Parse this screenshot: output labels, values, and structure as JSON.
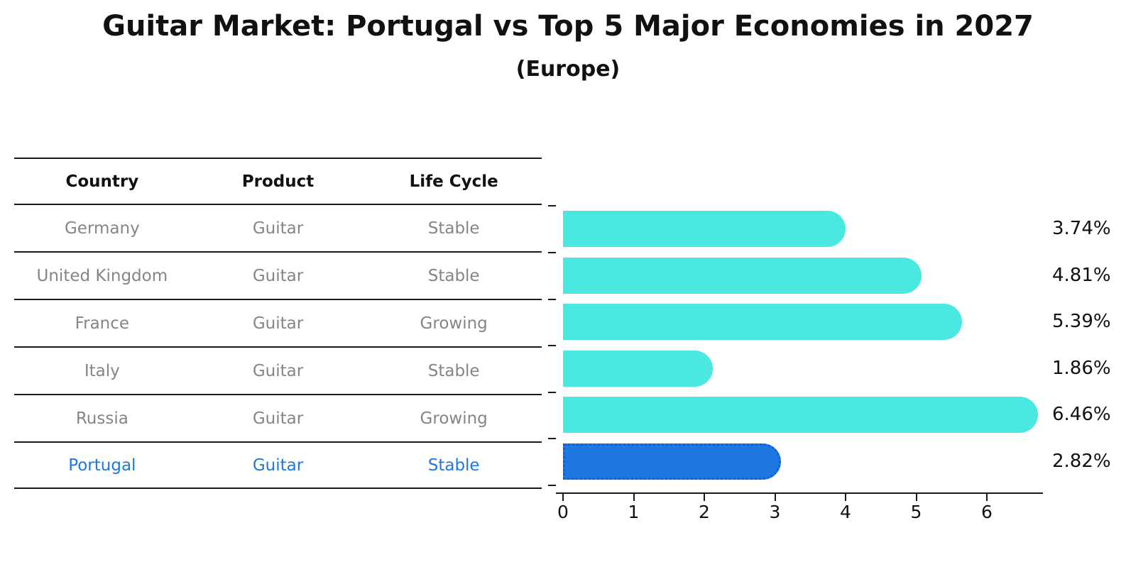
{
  "title": "Guitar Market: Portugal vs Top 5 Major Economies in 2027",
  "subtitle": "(Europe)",
  "table": {
    "headers": [
      "Country",
      "Product",
      "Life Cycle"
    ],
    "rows": [
      {
        "country": "Germany",
        "product": "Guitar",
        "life_cycle": "Stable",
        "highlight": false
      },
      {
        "country": "United Kingdom",
        "product": "Guitar",
        "life_cycle": "Stable",
        "highlight": false
      },
      {
        "country": "France",
        "product": "Guitar",
        "life_cycle": "Growing",
        "highlight": false
      },
      {
        "country": "Italy",
        "product": "Guitar",
        "life_cycle": "Stable",
        "highlight": false
      },
      {
        "country": "Russia",
        "product": "Guitar",
        "life_cycle": "Growing",
        "highlight": false
      },
      {
        "country": "Portugal",
        "product": "Guitar",
        "life_cycle": "Stable",
        "highlight": true
      }
    ]
  },
  "chart_data": {
    "type": "bar",
    "orientation": "horizontal",
    "categories": [
      "Germany",
      "United Kingdom",
      "France",
      "Italy",
      "Russia",
      "Portugal"
    ],
    "values": [
      3.74,
      4.81,
      5.39,
      1.86,
      6.46,
      2.82
    ],
    "labels": [
      "3.74%",
      "4.81%",
      "5.39%",
      "1.86%",
      "6.46%",
      "2.82%"
    ],
    "x_ticks": [
      0,
      1,
      2,
      3,
      4,
      5,
      6
    ],
    "xlim": [
      0,
      6.8
    ],
    "xlabel": "",
    "ylabel": "",
    "grid": false,
    "legend": false,
    "bar_color": "#4AE8E0",
    "highlight_color": "#1E78E2",
    "highlight_index": 5
  },
  "colors": {
    "bar_cyan": "#4AE8E0",
    "bar_blue": "#1E78E2",
    "highlight_text": "#1E78E2",
    "muted_text": "#858585",
    "axis": "#1a1a1a"
  }
}
